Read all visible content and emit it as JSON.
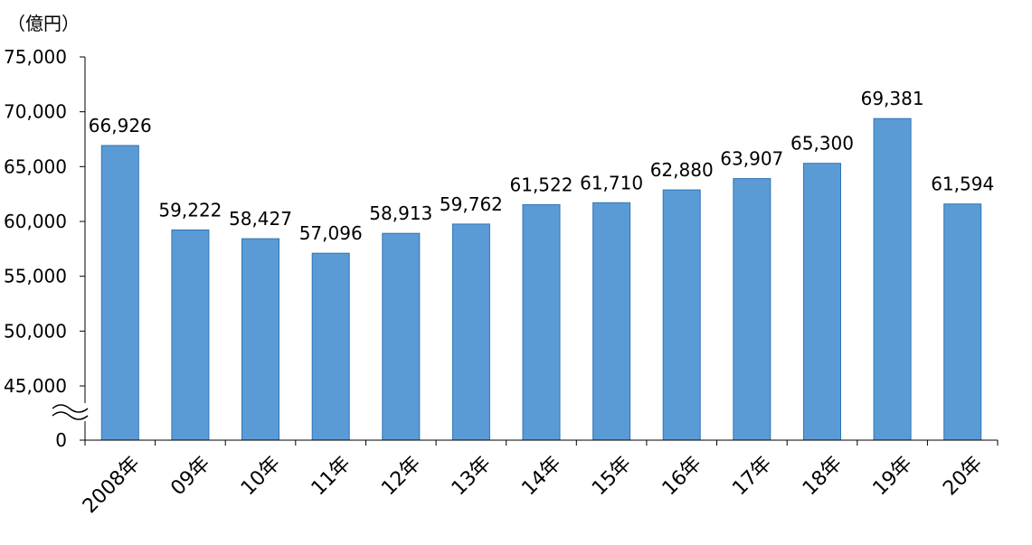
{
  "chart_data": {
    "type": "bar",
    "unit_label": "（億円）",
    "categories": [
      "2008年",
      "09年",
      "10年",
      "11年",
      "12年",
      "13年",
      "14年",
      "15年",
      "16年",
      "17年",
      "18年",
      "19年",
      "20年"
    ],
    "values": [
      66926,
      59222,
      58427,
      57096,
      58913,
      59762,
      61522,
      61710,
      62880,
      63907,
      65300,
      69381,
      61594
    ],
    "value_labels": [
      "66,926",
      "59,222",
      "58,427",
      "57,096",
      "58,913",
      "59,762",
      "61,522",
      "61,710",
      "62,880",
      "63,907",
      "65,300",
      "69,381",
      "61,594"
    ],
    "y_ticks": [
      {
        "value": 0,
        "label": "0"
      },
      {
        "value": 45000,
        "label": "45,000"
      },
      {
        "value": 50000,
        "label": "50,000"
      },
      {
        "value": 55000,
        "label": "55,000"
      },
      {
        "value": 60000,
        "label": "60,000"
      },
      {
        "value": 65000,
        "label": "65,000"
      },
      {
        "value": 70000,
        "label": "70,000"
      },
      {
        "value": 75000,
        "label": "75,000"
      }
    ],
    "ylim": [
      40000,
      75000
    ],
    "axis_break": true,
    "grid": false,
    "legend": "none",
    "bar_color": "#5b9bd5",
    "bar_edge_color": "#2e75b6",
    "title": "",
    "xlabel": "",
    "ylabel": ""
  }
}
